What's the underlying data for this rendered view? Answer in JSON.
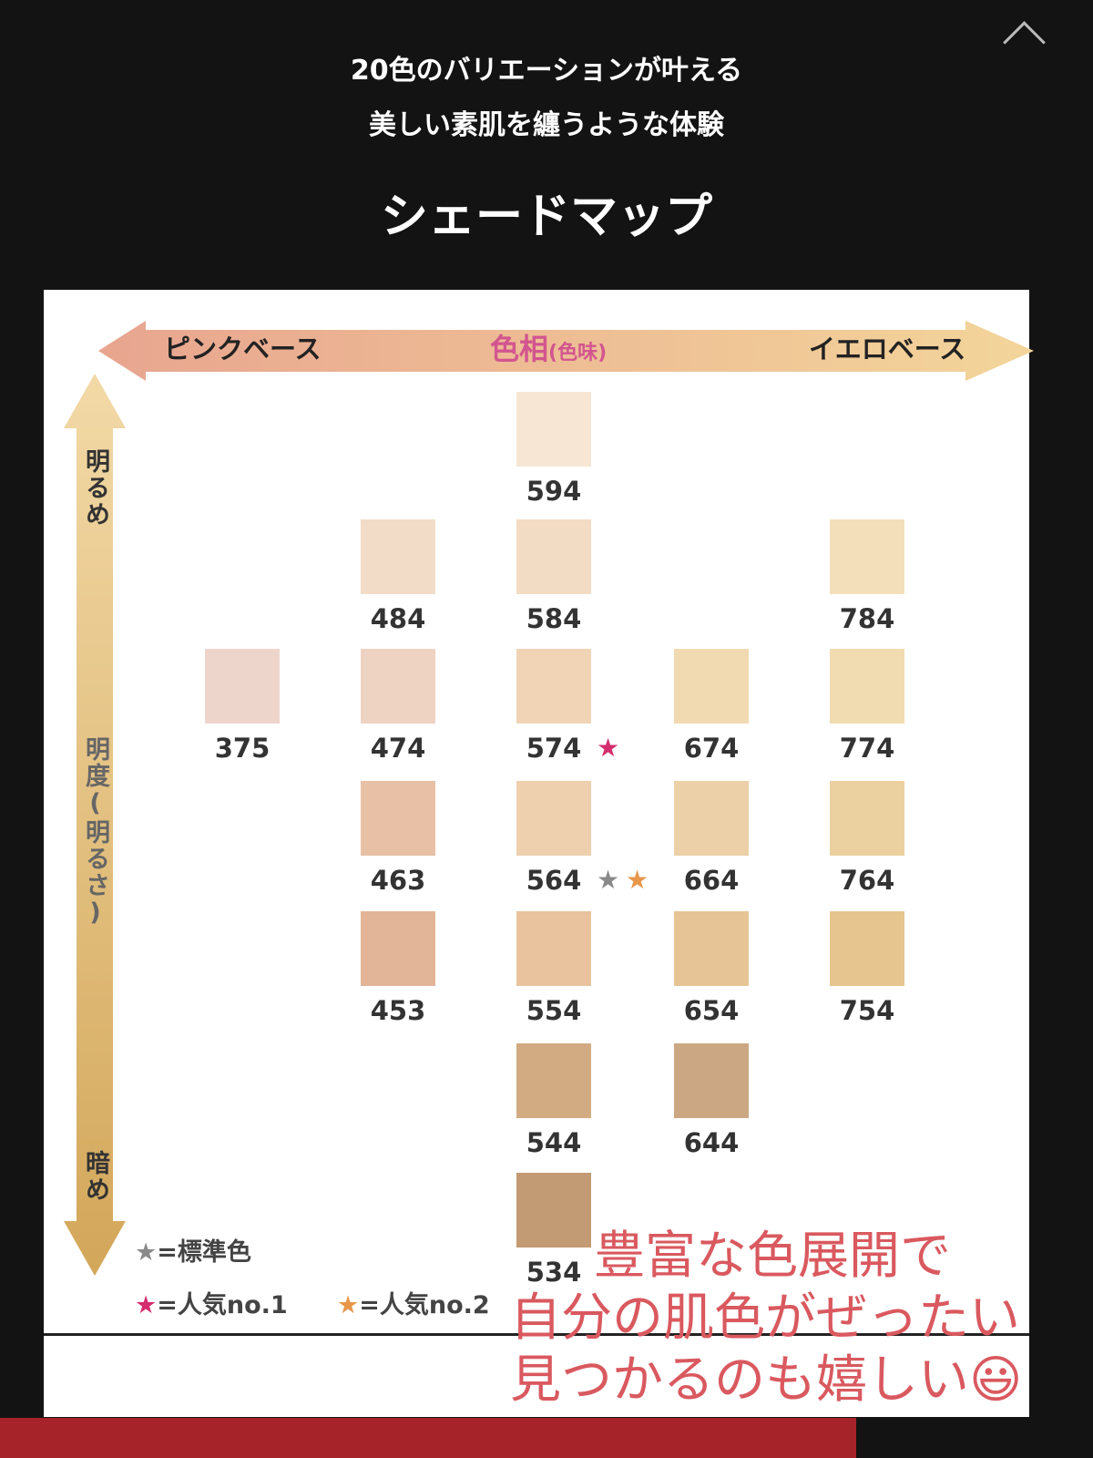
{
  "header": {
    "line1": "20色のバリエーションが叶える",
    "line2": "美しい素肌を纏うような体験",
    "title": "シェードマップ"
  },
  "axes": {
    "pink": "ピンクベース",
    "hue": "色相",
    "hue_sub": "(色味)",
    "yellow": "イエロベース",
    "bright": "明るめ",
    "lightness": "明度(明るさ)",
    "dark": "暗め"
  },
  "shades": [
    {
      "code": "594",
      "color": "#f6e6d3",
      "col": 2,
      "row": 0
    },
    {
      "code": "484",
      "color": "#f2dcc8",
      "col": 1,
      "row": 1
    },
    {
      "code": "584",
      "color": "#f2dcc3",
      "col": 2,
      "row": 1
    },
    {
      "code": "784",
      "color": "#f3e0ba",
      "col": 4,
      "row": 1
    },
    {
      "code": "375",
      "color": "#eed5cc",
      "col": 0,
      "row": 2
    },
    {
      "code": "474",
      "color": "#efd3c2",
      "col": 1,
      "row": 2
    },
    {
      "code": "574",
      "color": "#f1d4b5",
      "col": 2,
      "row": 2,
      "stars": [
        "#d42d6e"
      ]
    },
    {
      "code": "674",
      "color": "#f1d9b2",
      "col": 3,
      "row": 2
    },
    {
      "code": "774",
      "color": "#f1dbb0",
      "col": 4,
      "row": 2
    },
    {
      "code": "463",
      "color": "#e8c0a5",
      "col": 1,
      "row": 3
    },
    {
      "code": "564",
      "color": "#eecfae",
      "col": 2,
      "row": 3,
      "stars": [
        "#8a8a8a",
        "#e8964a"
      ]
    },
    {
      "code": "664",
      "color": "#ecd0a7",
      "col": 3,
      "row": 3
    },
    {
      "code": "764",
      "color": "#ecd1a0",
      "col": 4,
      "row": 3
    },
    {
      "code": "453",
      "color": "#e2b598",
      "col": 1,
      "row": 4
    },
    {
      "code": "554",
      "color": "#e8c39d",
      "col": 2,
      "row": 4
    },
    {
      "code": "654",
      "color": "#e6c496",
      "col": 3,
      "row": 4
    },
    {
      "code": "754",
      "color": "#e6c58e",
      "col": 4,
      "row": 4
    },
    {
      "code": "544",
      "color": "#d2ab82",
      "col": 2,
      "row": 5
    },
    {
      "code": "644",
      "color": "#cba883",
      "col": 3,
      "row": 5
    },
    {
      "code": "534",
      "color": "#c29a74",
      "col": 2,
      "row": 6
    }
  ],
  "legend": {
    "standard": "=標準色",
    "popular1": "=人気no.1",
    "popular2": "=人気no.2",
    "star": "★",
    "colors": {
      "standard": "#8a8a8a",
      "popular1": "#d42d6e",
      "popular2": "#e8964a"
    }
  },
  "note": [
    "豊富な色展開で",
    "自分の肌色がぜったい",
    "見つかるのも嬉しい😃"
  ]
}
